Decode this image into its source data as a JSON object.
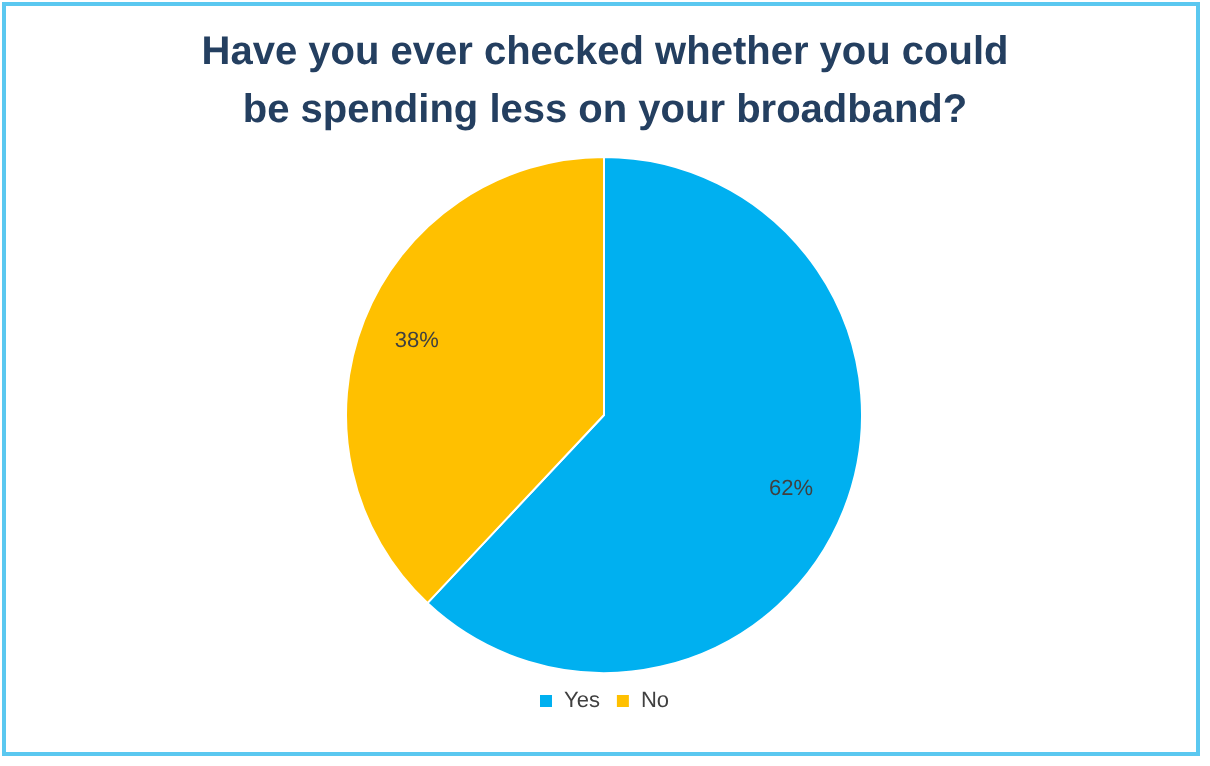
{
  "chart_data": {
    "type": "pie",
    "title": "Have you ever checked whether you could be spending less on your broadband?",
    "categories": [
      "Yes",
      "No"
    ],
    "values": [
      62,
      38
    ],
    "colors": [
      "#00b0f0",
      "#ffc000"
    ],
    "value_labels": [
      "62%",
      "38%"
    ],
    "legend": "bottom"
  }
}
